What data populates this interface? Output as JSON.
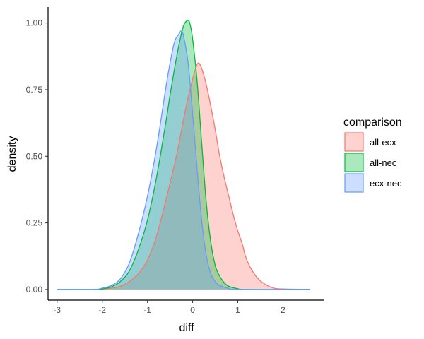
{
  "chart_data": {
    "type": "area",
    "xlabel": "diff",
    "ylabel": "density",
    "xlim": [
      -3.2,
      2.9
    ],
    "ylim": [
      -0.04,
      1.06
    ],
    "x_ticks": [
      -3,
      -2,
      -1,
      0,
      1,
      2
    ],
    "x_tick_labels": [
      "-3",
      "-2",
      "-1",
      "0",
      "1",
      "2"
    ],
    "y_ticks": [
      0,
      0.25,
      0.5,
      0.75,
      1.0
    ],
    "y_tick_labels": [
      "0.00",
      "0.25",
      "0.50",
      "0.75",
      "1.00"
    ],
    "grid": false,
    "fill_opacity": 0.33,
    "legend": {
      "title": "comparison",
      "position": "right"
    },
    "series": [
      {
        "name": "all-ecx",
        "color": "#F8766D",
        "x": [
          -3.0,
          -2.2,
          -2.0,
          -1.8,
          -1.6,
          -1.4,
          -1.2,
          -1.0,
          -0.8,
          -0.6,
          -0.4,
          -0.3,
          -0.2,
          -0.1,
          0.0,
          0.05,
          0.12,
          0.2,
          0.3,
          0.4,
          0.5,
          0.6,
          0.7,
          0.8,
          0.9,
          1.0,
          1.1,
          1.2,
          1.4,
          1.6,
          1.8,
          2.0,
          2.6
        ],
        "y": [
          0.0,
          0.0,
          0.002,
          0.005,
          0.012,
          0.03,
          0.06,
          0.11,
          0.2,
          0.33,
          0.47,
          0.55,
          0.64,
          0.72,
          0.79,
          0.82,
          0.85,
          0.83,
          0.77,
          0.69,
          0.6,
          0.5,
          0.42,
          0.35,
          0.28,
          0.22,
          0.17,
          0.11,
          0.05,
          0.02,
          0.005,
          0.002,
          0.0
        ]
      },
      {
        "name": "all-nec",
        "color": "#00BA38",
        "x": [
          -3.0,
          -2.2,
          -2.0,
          -1.8,
          -1.6,
          -1.4,
          -1.2,
          -1.0,
          -0.8,
          -0.6,
          -0.5,
          -0.4,
          -0.3,
          -0.2,
          -0.1,
          -0.05,
          0.0,
          0.1,
          0.2,
          0.3,
          0.4,
          0.5,
          0.6,
          0.7,
          0.8,
          1.0,
          1.2,
          2.6
        ],
        "y": [
          0.0,
          0.0,
          0.002,
          0.01,
          0.03,
          0.07,
          0.15,
          0.26,
          0.42,
          0.62,
          0.73,
          0.83,
          0.92,
          0.99,
          1.01,
          0.99,
          0.94,
          0.78,
          0.55,
          0.33,
          0.18,
          0.09,
          0.05,
          0.025,
          0.012,
          0.003,
          0.0,
          0.0
        ]
      },
      {
        "name": "ecx-nec",
        "color": "#619CFF",
        "x": [
          -3.0,
          -2.2,
          -2.0,
          -1.8,
          -1.6,
          -1.4,
          -1.2,
          -1.0,
          -0.8,
          -0.6,
          -0.5,
          -0.4,
          -0.3,
          -0.25,
          -0.2,
          -0.1,
          0.0,
          0.1,
          0.2,
          0.3,
          0.4,
          0.5,
          0.6,
          0.8,
          1.0,
          2.6
        ],
        "y": [
          0.0,
          0.0,
          0.005,
          0.015,
          0.04,
          0.1,
          0.21,
          0.35,
          0.53,
          0.75,
          0.85,
          0.93,
          0.96,
          0.97,
          0.95,
          0.85,
          0.66,
          0.45,
          0.26,
          0.13,
          0.06,
          0.03,
          0.015,
          0.004,
          0.0,
          0.0
        ]
      }
    ]
  }
}
